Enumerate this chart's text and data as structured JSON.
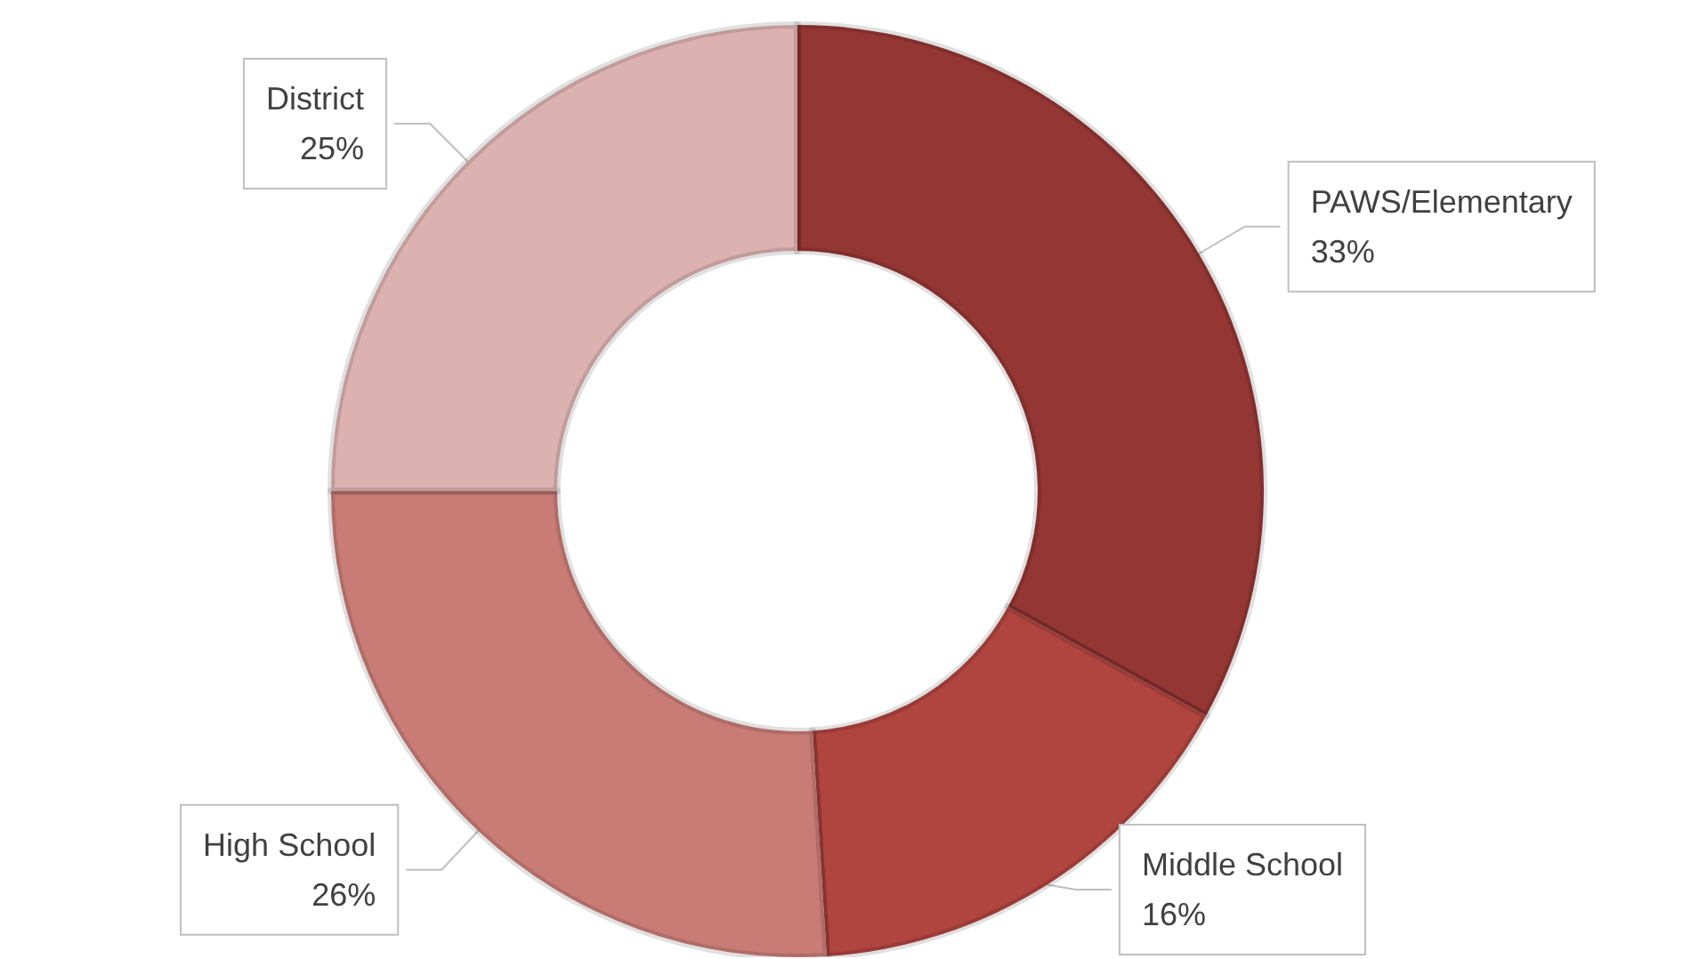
{
  "chart_data": {
    "type": "donut",
    "categories": [
      "PAWS/Elementary",
      "Middle School",
      "High School",
      "District"
    ],
    "values": [
      33,
      16,
      26,
      25
    ],
    "value_labels": [
      "33%",
      "16%",
      "26%",
      "25%"
    ],
    "colors": [
      "#943634",
      "#b0443f",
      "#c97b76",
      "#dcb2b1"
    ],
    "legend": false
  }
}
